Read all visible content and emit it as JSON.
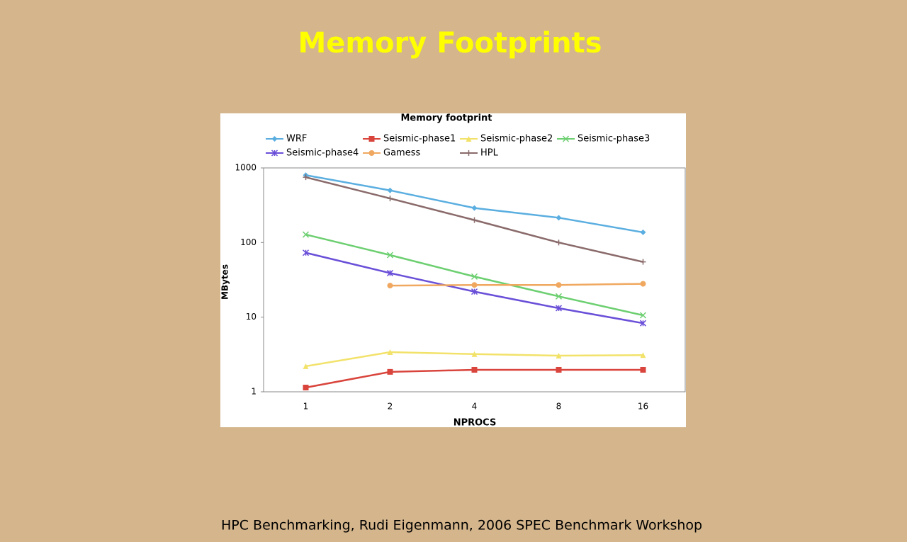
{
  "slide_title": "Memory Footprints",
  "footer": "HPC Benchmarking, Rudi Eigenmann, 2006 SPEC Benchmark Workshop",
  "chart_data": {
    "type": "line",
    "title": "Memory footprint",
    "x_label": "NPROCS",
    "y_label": "MBytes",
    "categories": [
      "1",
      "2",
      "4",
      "8",
      "16"
    ],
    "ylim": [
      1,
      1000
    ],
    "yticks": [
      1,
      10,
      100,
      1000
    ],
    "log_scale": true,
    "grid": false,
    "series": [
      {
        "name": "WRF",
        "color": "#5aaee0",
        "marker": "diamond",
        "values": [
          800,
          500,
          290,
          215,
          137
        ]
      },
      {
        "name": "Seismic-phase1",
        "color": "#d9443c",
        "marker": "square",
        "values": [
          1.14,
          1.85,
          1.97,
          1.97,
          1.97
        ]
      },
      {
        "name": "Seismic-phase2",
        "color": "#f2e26a",
        "marker": "triangle",
        "values": [
          2.2,
          3.4,
          3.2,
          3.05,
          3.1
        ]
      },
      {
        "name": "Seismic-phase3",
        "color": "#6ccf70",
        "marker": "x",
        "values": [
          128,
          68,
          35,
          19,
          10.6
        ]
      },
      {
        "name": "Seismic-phase4",
        "color": "#6a4fd8",
        "marker": "asterisk",
        "values": [
          73,
          39,
          22,
          13.2,
          8.3
        ]
      },
      {
        "name": "Gamess",
        "color": "#f0a860",
        "marker": "circle",
        "values": [
          null,
          26.5,
          27,
          27,
          28
        ]
      },
      {
        "name": "HPL",
        "color": "#8a6a6a",
        "marker": "plus",
        "values": [
          750,
          390,
          200,
          100,
          55
        ]
      }
    ]
  }
}
